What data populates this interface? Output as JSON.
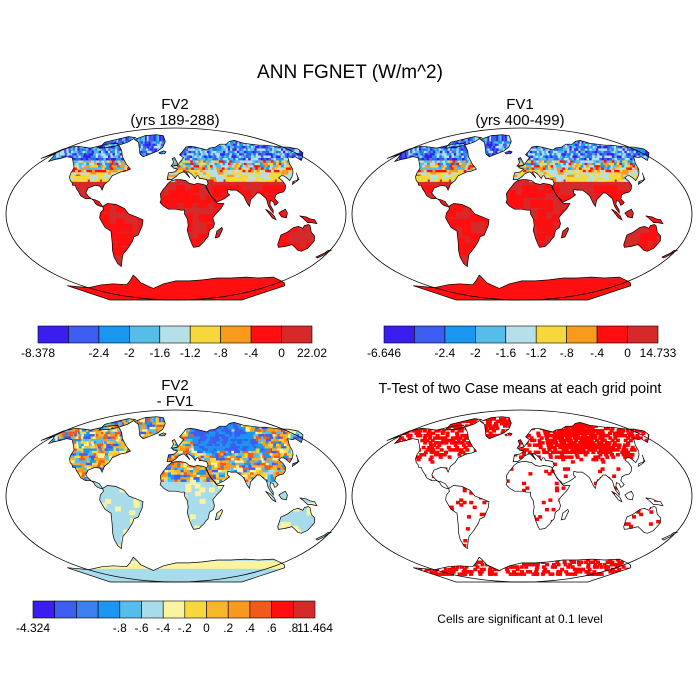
{
  "title": "ANN FGNET (W/m^2)",
  "panels": [
    {
      "title_line1": "FV2",
      "title_line2": "(yrs 189-288)",
      "colorbar": {
        "colors": [
          "#3a1ef0",
          "#3d5cf0",
          "#1a96f0",
          "#55bde8",
          "#b5e0ea",
          "#f7d83c",
          "#f79a1d",
          "#ff0f0f",
          "#d62a2a"
        ],
        "labels": [
          "-8.378",
          "-2.4",
          "-2",
          "-1.6",
          "-1.2",
          "-.8",
          "-.4",
          "0",
          "22.02"
        ]
      }
    },
    {
      "title_line1": "FV1",
      "title_line2": "(yrs 400-499)",
      "colorbar": {
        "colors": [
          "#3a1ef0",
          "#3d5cf0",
          "#1a96f0",
          "#55bde8",
          "#b5e0ea",
          "#f7d83c",
          "#f79a1d",
          "#ff0f0f",
          "#d62a2a"
        ],
        "labels": [
          "-6.646",
          "-2.4",
          "-2",
          "-1.6",
          "-1.2",
          "-.8",
          "-.4",
          "0",
          "14.733"
        ]
      }
    },
    {
      "title_line1": "FV2",
      "title_line2": "- FV1",
      "colorbar": {
        "colors": [
          "#3a1ef0",
          "#3d5cf0",
          "#3d7ef0",
          "#1a96f0",
          "#55bde8",
          "#a8dcea",
          "#fbf3a0",
          "#f7d83c",
          "#f7b52a",
          "#f79a1d",
          "#f05a1a",
          "#ff0f0f",
          "#d62a2a"
        ],
        "labels": [
          "-4.324",
          "-.8",
          "-.6",
          "-.4",
          "-.2",
          "0",
          ".2",
          ".4",
          ".6",
          ".8",
          "11.464"
        ]
      }
    },
    {
      "title": "T-Test of two Case means at each grid point",
      "note": "Cells are significant at 0.1 level"
    }
  ]
}
